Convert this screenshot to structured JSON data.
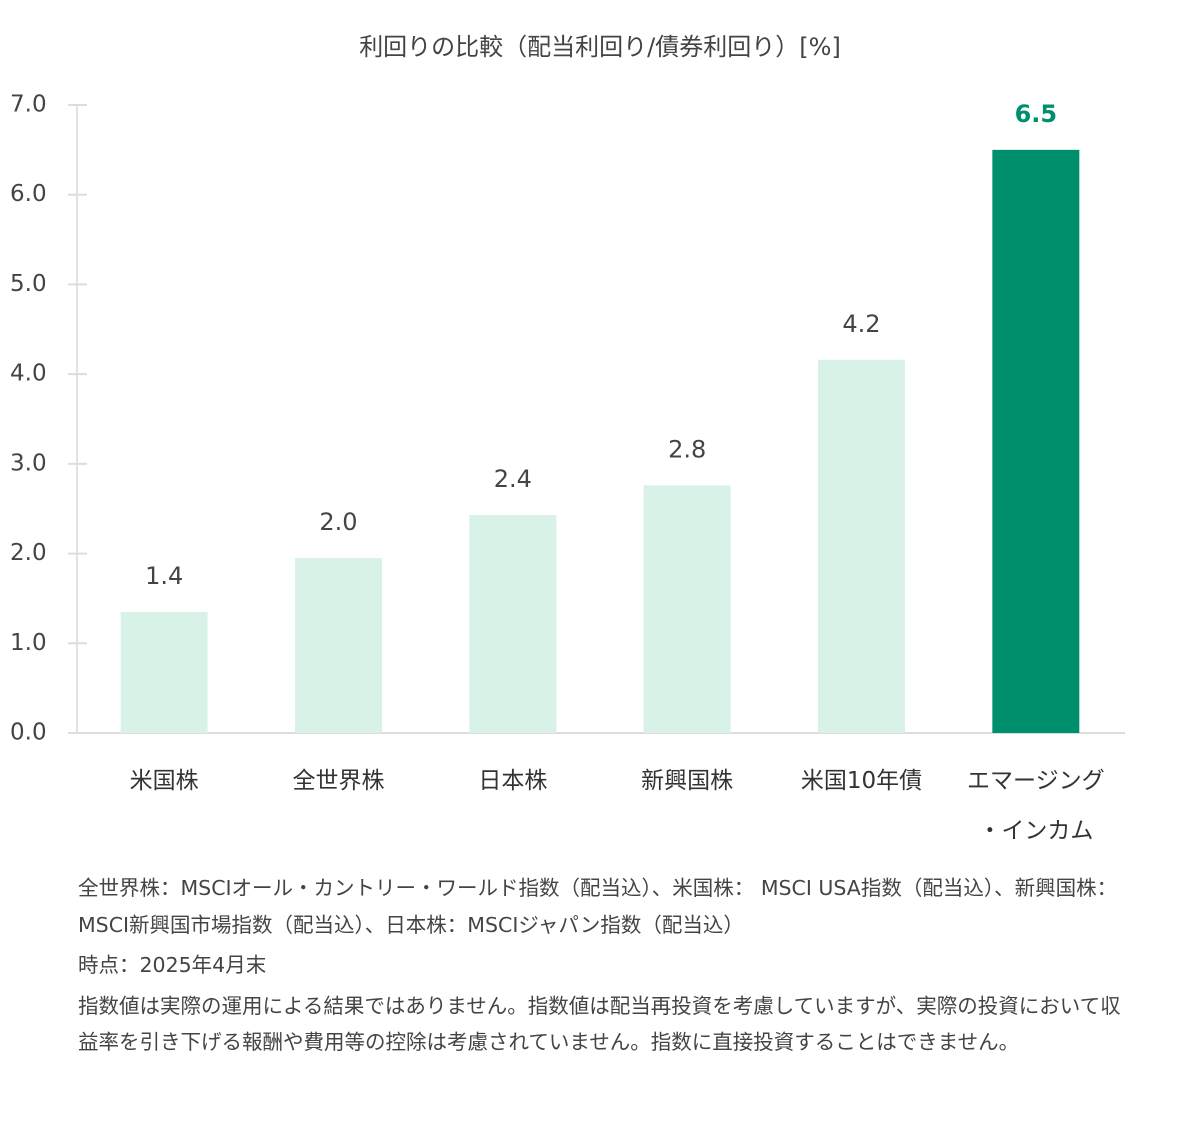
{
  "chart_data": {
    "type": "bar",
    "title": "利回りの比較（配当利回り/債券利回り）[%]",
    "categories": [
      "米国株",
      "全世界株",
      "日本株",
      "新興国株",
      "米国10年債",
      "エマージング\n・インカム"
    ],
    "values": [
      1.35,
      1.95,
      2.43,
      2.76,
      4.16,
      6.5
    ],
    "value_labels": [
      "1.4",
      "2.0",
      "2.4",
      "2.8",
      "4.2",
      "6.5"
    ],
    "colors": [
      "#d9f2e8",
      "#d9f2e8",
      "#d9f2e8",
      "#d9f2e8",
      "#d9f2e8",
      "#008f6c"
    ],
    "value_label_colors": [
      "#444444",
      "#444444",
      "#444444",
      "#444444",
      "#444444",
      "#008f6c"
    ],
    "ylim": [
      0,
      7
    ],
    "yticks": [
      {
        "value": 0,
        "label": "0.0"
      },
      {
        "value": 1,
        "label": "1.0"
      },
      {
        "value": 2,
        "label": "2.0"
      },
      {
        "value": 3,
        "label": "3.0"
      },
      {
        "value": 4,
        "label": "4.0"
      },
      {
        "value": 5,
        "label": "5.0"
      },
      {
        "value": 6,
        "label": "6.0"
      },
      {
        "value": 7,
        "label": "7.0"
      }
    ],
    "grid": false
  },
  "notes": [
    "全世界株：MSCIオール・カントリー・ワールド指数（配当込）、米国株： MSCI USA指数（配当込）、新興国株：MSCI新興国市場指数（配当込）、日本株：MSCIジャパン指数（配当込）",
    "時点：2025年4月末",
    "指数値は実際の運用による結果ではありません。指数値は配当再投資を考慮していますが、実際の投資において収益率を引き下げる報酬や費用等の控除は考慮されていません。指数に直接投資することはできません。"
  ]
}
